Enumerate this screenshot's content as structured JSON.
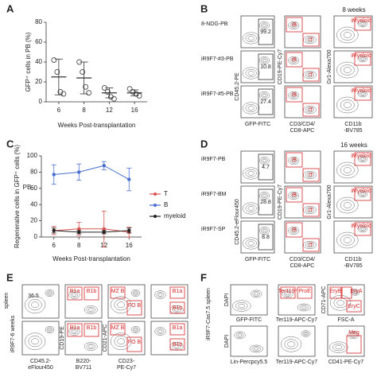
{
  "panel_letters": [
    "A",
    "B",
    "C",
    "D",
    "E",
    "F"
  ],
  "chart_data": [
    {
      "type": "dot",
      "ylabel": "GFP⁺ cells in PB (%)",
      "xlabel": "Weeks Post-transplantation",
      "categories": [
        "6",
        "8",
        "12",
        "16"
      ],
      "points": [
        [
          42,
          30,
          10,
          8
        ],
        [
          40,
          30,
          15,
          9
        ],
        [
          14,
          10,
          5,
          3
        ],
        [
          13,
          10,
          8,
          6
        ]
      ],
      "means": [
        25,
        24,
        9,
        9
      ],
      "sd": [
        18,
        16,
        5,
        3
      ],
      "color": "#555",
      "ylim": [
        0,
        80
      ],
      "yticks": [
        0,
        20,
        40,
        60,
        80
      ]
    },
    {
      "type": "line",
      "title": "PB",
      "ylabel": "Regenerative cells in GFP⁺ cells (%)",
      "xlabel": "Weeks Post-transplantation",
      "categories": [
        "6",
        "8",
        "12",
        "16"
      ],
      "series": [
        {
          "name": "T",
          "color": "#d9534f",
          "values": [
            8,
            10,
            10,
            6
          ],
          "errors": [
            5,
            8,
            22,
            6
          ]
        },
        {
          "name": "B",
          "color": "#4a6fd1",
          "values": [
            77,
            80,
            88,
            71
          ],
          "errors": [
            12,
            10,
            5,
            14
          ]
        },
        {
          "name": "myeloid",
          "color": "#222222",
          "values": [
            8,
            6,
            6,
            8
          ],
          "errors": [
            3,
            2,
            2,
            3
          ]
        }
      ],
      "ylim": [
        0,
        100
      ],
      "yticks": [
        0,
        20,
        40,
        60,
        80,
        100
      ]
    }
  ],
  "flow": [
    {
      "header": "8 weeks",
      "rows": [
        "8-NDG-PB",
        "iR9F7-#3-PB",
        "iR9F7-#5-PB"
      ],
      "gfp": [
        "99.2",
        "10.8",
        "27.4"
      ],
      "gates_mid": [
        "iB",
        "iT"
      ],
      "gate_right": "iMyeloid",
      "xlabels": [
        "GFP-FITC",
        "CD3/CD4/",
        "CD8-APC",
        "CD11b",
        "-BV785"
      ],
      "ylabels": [
        "CD45.2-PE",
        "CD19-PE-Cy7",
        "Gr1-Alexa700"
      ]
    },
    {
      "header": "16 weeks",
      "rows": [
        "iR9F7-PB",
        "iR9F7-BM",
        "iR9F7-SP"
      ],
      "gfp": [
        "4.7",
        "28.8",
        "8.8"
      ],
      "gates_mid": [
        "iB",
        "iT"
      ],
      "gate_right": "iMyeloid",
      "xlabels": [
        "GFP-FITC",
        "CD3/CD4/",
        "CD8-APC",
        "CD11b",
        "-BV785"
      ],
      "ylabels": [
        "CD45.2-eFlour450",
        "CD19-PE-Cy7",
        "Gr1-Alexa700"
      ]
    }
  ],
  "panel_e": {
    "side": "spleen",
    "row": "iR9F7-6 weeks",
    "value": "36.5",
    "gates_b1": [
      "B1a",
      "B1b"
    ],
    "gates_mz": [
      "MZ B",
      "FO B"
    ],
    "xlabels": [
      "CD45.2-",
      "eFlour450",
      "B220-",
      "BV711",
      "CD23-",
      "PE-Cy7"
    ],
    "ylabels": [
      "CD19-PE",
      "CD21-APC"
    ]
  },
  "panel_f": {
    "side": "iR9F7-Cas7.5 spleen",
    "ylabels": [
      "DAPI",
      "CD71-APC",
      "DAPI"
    ],
    "xlabels": [
      "GFP-FITC",
      "Ter119-APC-Cy7",
      "FSC-A",
      "Lin-Percpcy5.5",
      "Ter119-APC-Cy7",
      "CD41-PE-Cy7"
    ],
    "gates": [
      "Ter119⁺",
      "ProE",
      "EryB",
      "EryA",
      "EryC",
      "Meg"
    ]
  }
}
